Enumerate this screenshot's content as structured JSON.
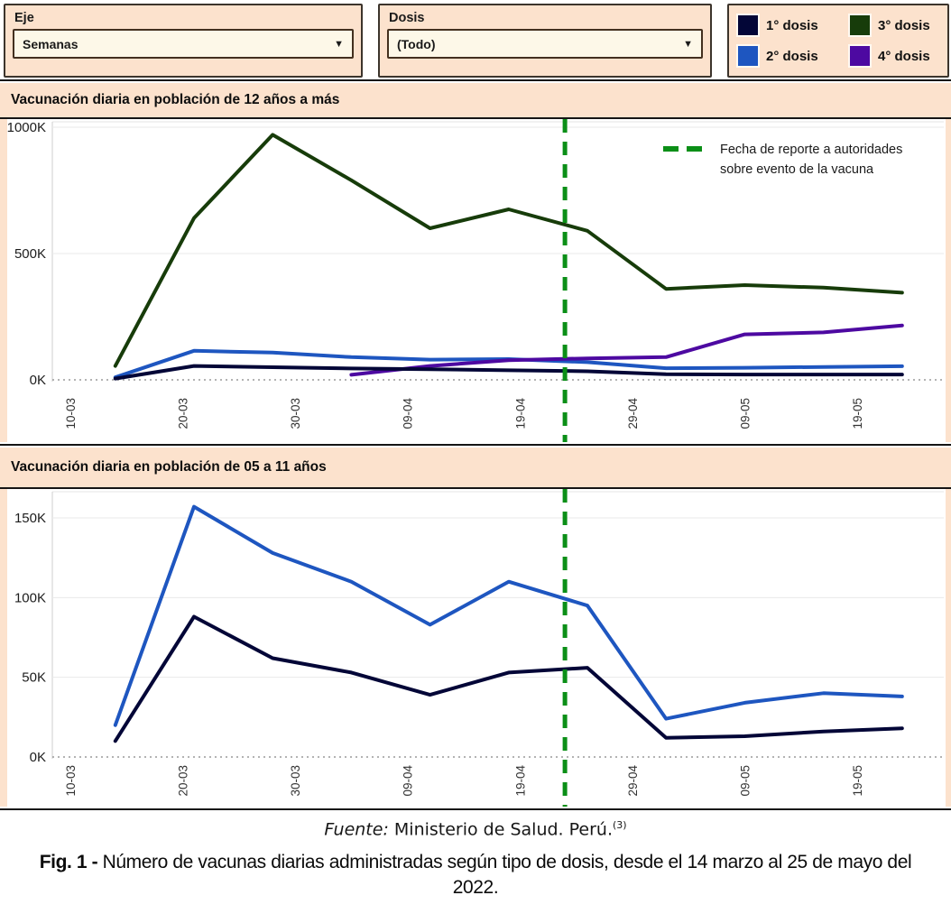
{
  "controls": {
    "eje": {
      "label": "Eje",
      "value": "Semanas"
    },
    "dosis": {
      "label": "Dosis",
      "value": "(Todo)"
    }
  },
  "legend": {
    "items": [
      {
        "label": "1° dosis",
        "color_key": "dosis1"
      },
      {
        "label": "2° dosis",
        "color_key": "dosis2"
      },
      {
        "label": "3° dosis",
        "color_key": "dosis3"
      },
      {
        "label": "4° dosis",
        "color_key": "dosis4"
      }
    ]
  },
  "colors": {
    "dosis1": "#030637",
    "dosis2": "#1e56c0",
    "dosis3": "#173c0a",
    "dosis4": "#4d09a1",
    "event_line": "#0b8f17",
    "grid": "#e9e9e9",
    "zero_line": "#9a9a9a"
  },
  "chart_data": [
    {
      "type": "line",
      "title": "Vacunación diaria en población de 12 años a más",
      "unit": "K doses per day",
      "x": [
        "14-03",
        "21-03",
        "28-03",
        "04-04",
        "11-04",
        "18-04",
        "25-04",
        "02-05",
        "09-05",
        "16-05",
        "23-05"
      ],
      "x_days": [
        4,
        11,
        18,
        25,
        32,
        39,
        46,
        53,
        60,
        67,
        74
      ],
      "xticks": {
        "labels": [
          "10-03",
          "20-03",
          "30-03",
          "09-04",
          "19-04",
          "29-04",
          "09-05",
          "19-05"
        ],
        "days": [
          0,
          10,
          20,
          30,
          40,
          50,
          60,
          70
        ]
      },
      "yticks": {
        "labels": [
          "0K",
          "500K",
          "1000K"
        ],
        "values": [
          0,
          500,
          1000
        ]
      },
      "ylim": [
        0,
        1020
      ],
      "series": [
        {
          "name": "1° dosis",
          "color_key": "dosis1",
          "values": [
            5,
            55,
            50,
            45,
            42,
            38,
            34,
            22,
            21,
            21,
            21
          ]
        },
        {
          "name": "2° dosis",
          "color_key": "dosis2",
          "values": [
            10,
            115,
            108,
            90,
            80,
            82,
            70,
            46,
            48,
            51,
            54
          ]
        },
        {
          "name": "3° dosis",
          "color_key": "dosis3",
          "values": [
            55,
            640,
            970,
            790,
            600,
            675,
            590,
            360,
            375,
            365,
            345
          ]
        },
        {
          "name": "4° dosis",
          "color_key": "dosis4",
          "values": [
            null,
            null,
            null,
            20,
            55,
            78,
            85,
            90,
            180,
            188,
            215
          ]
        }
      ],
      "event_line_day": 44,
      "annotation": [
        "Fecha de reporte a autoridades",
        "sobre evento de la vacuna"
      ]
    },
    {
      "type": "line",
      "title": "Vacunación diaria en población de 05 a 11 años",
      "unit": "K doses per day",
      "x": [
        "14-03",
        "21-03",
        "28-03",
        "04-04",
        "11-04",
        "18-04",
        "25-04",
        "02-05",
        "09-05",
        "16-05",
        "23-05"
      ],
      "x_days": [
        4,
        11,
        18,
        25,
        32,
        39,
        46,
        53,
        60,
        67,
        74
      ],
      "xticks": {
        "labels": [
          "10-03",
          "20-03",
          "30-03",
          "09-04",
          "19-04",
          "29-04",
          "09-05",
          "19-05"
        ],
        "days": [
          0,
          10,
          20,
          30,
          40,
          50,
          60,
          70
        ]
      },
      "yticks": {
        "labels": [
          "0K",
          "50K",
          "100K",
          "150K"
        ],
        "values": [
          0,
          50,
          100,
          150
        ]
      },
      "ylim": [
        0,
        167
      ],
      "series": [
        {
          "name": "1° dosis",
          "color_key": "dosis1",
          "values": [
            10,
            88,
            62,
            53,
            39,
            53,
            56,
            12,
            13,
            16,
            18
          ]
        },
        {
          "name": "2° dosis",
          "color_key": "dosis2",
          "values": [
            20,
            157,
            128,
            110,
            83,
            110,
            95,
            24,
            34,
            40,
            38
          ]
        }
      ],
      "event_line_day": 44
    }
  ],
  "captions": {
    "fuente_label": "Fuente:",
    "fuente_text": " Ministerio de Salud. Perú.",
    "fuente_ref": "(3)",
    "fig_label": "Fig. 1 - ",
    "fig_text": "Número de vacunas diarias administradas según tipo de dosis, desde el 14 marzo al 25 de mayo del 2022."
  }
}
